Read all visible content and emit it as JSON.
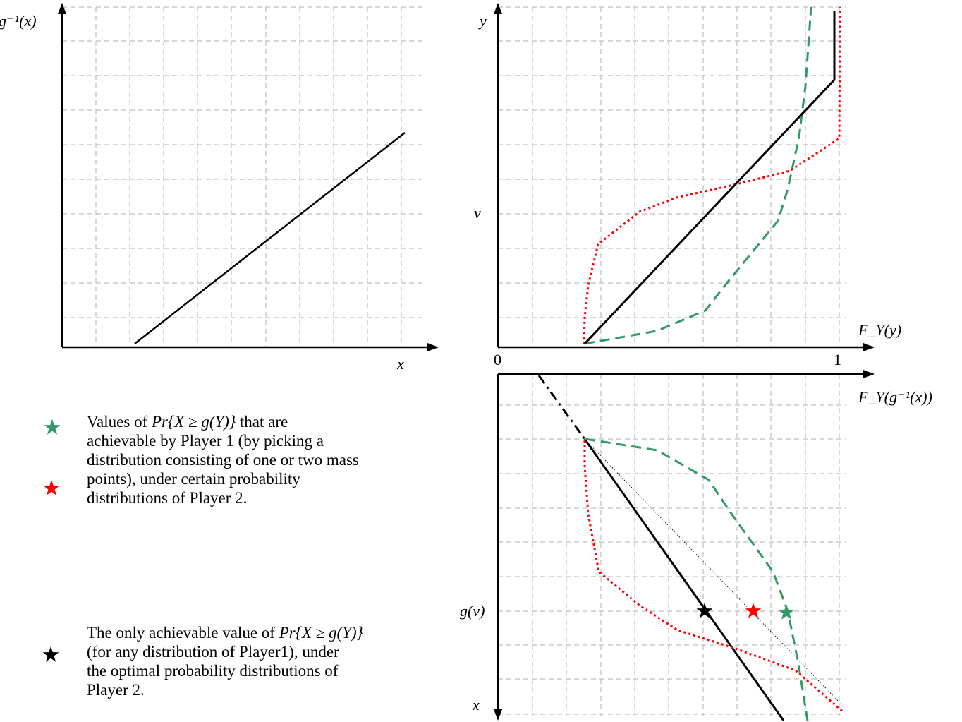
{
  "panel_top_left": {
    "ylabel": "g⁻¹(x)",
    "xlabel": "x"
  },
  "panel_top_right": {
    "ylabel": "y",
    "xlabel": "F_Y(y)",
    "tick_v": "v",
    "tick_0": "0",
    "tick_1": "1"
  },
  "panel_bottom_right": {
    "xlabel": "F_Y(g⁻¹(x))",
    "tick_gv": "g(v)",
    "ylabel": "x"
  },
  "legend": {
    "item1_line1_pre": "Values of ",
    "item1_math": "Pr{X ≥ g(Y)}",
    "item1_line1_post": " that are",
    "item1_line2": "achievable by Player 1 (by picking a",
    "item1_line3": "distribution consisting of one or two mass",
    "item1_line4": "points), under certain probability",
    "item1_line5": "distributions of Player 2.",
    "item2_line1_pre": "The only achievable value of ",
    "item2_math": "Pr{X ≥ g(Y)}",
    "item2_line2": "(for any distribution of Player1), under",
    "item2_line3": "the optimal probability distributions of",
    "item2_line4": "Player 2."
  },
  "colors": {
    "green": "#339966",
    "red": "#ff0000",
    "black": "#000000",
    "grid": "#bfbfbf"
  },
  "icons": {
    "green_star": "star-icon",
    "red_star": "star-icon",
    "black_star": "star-icon"
  }
}
